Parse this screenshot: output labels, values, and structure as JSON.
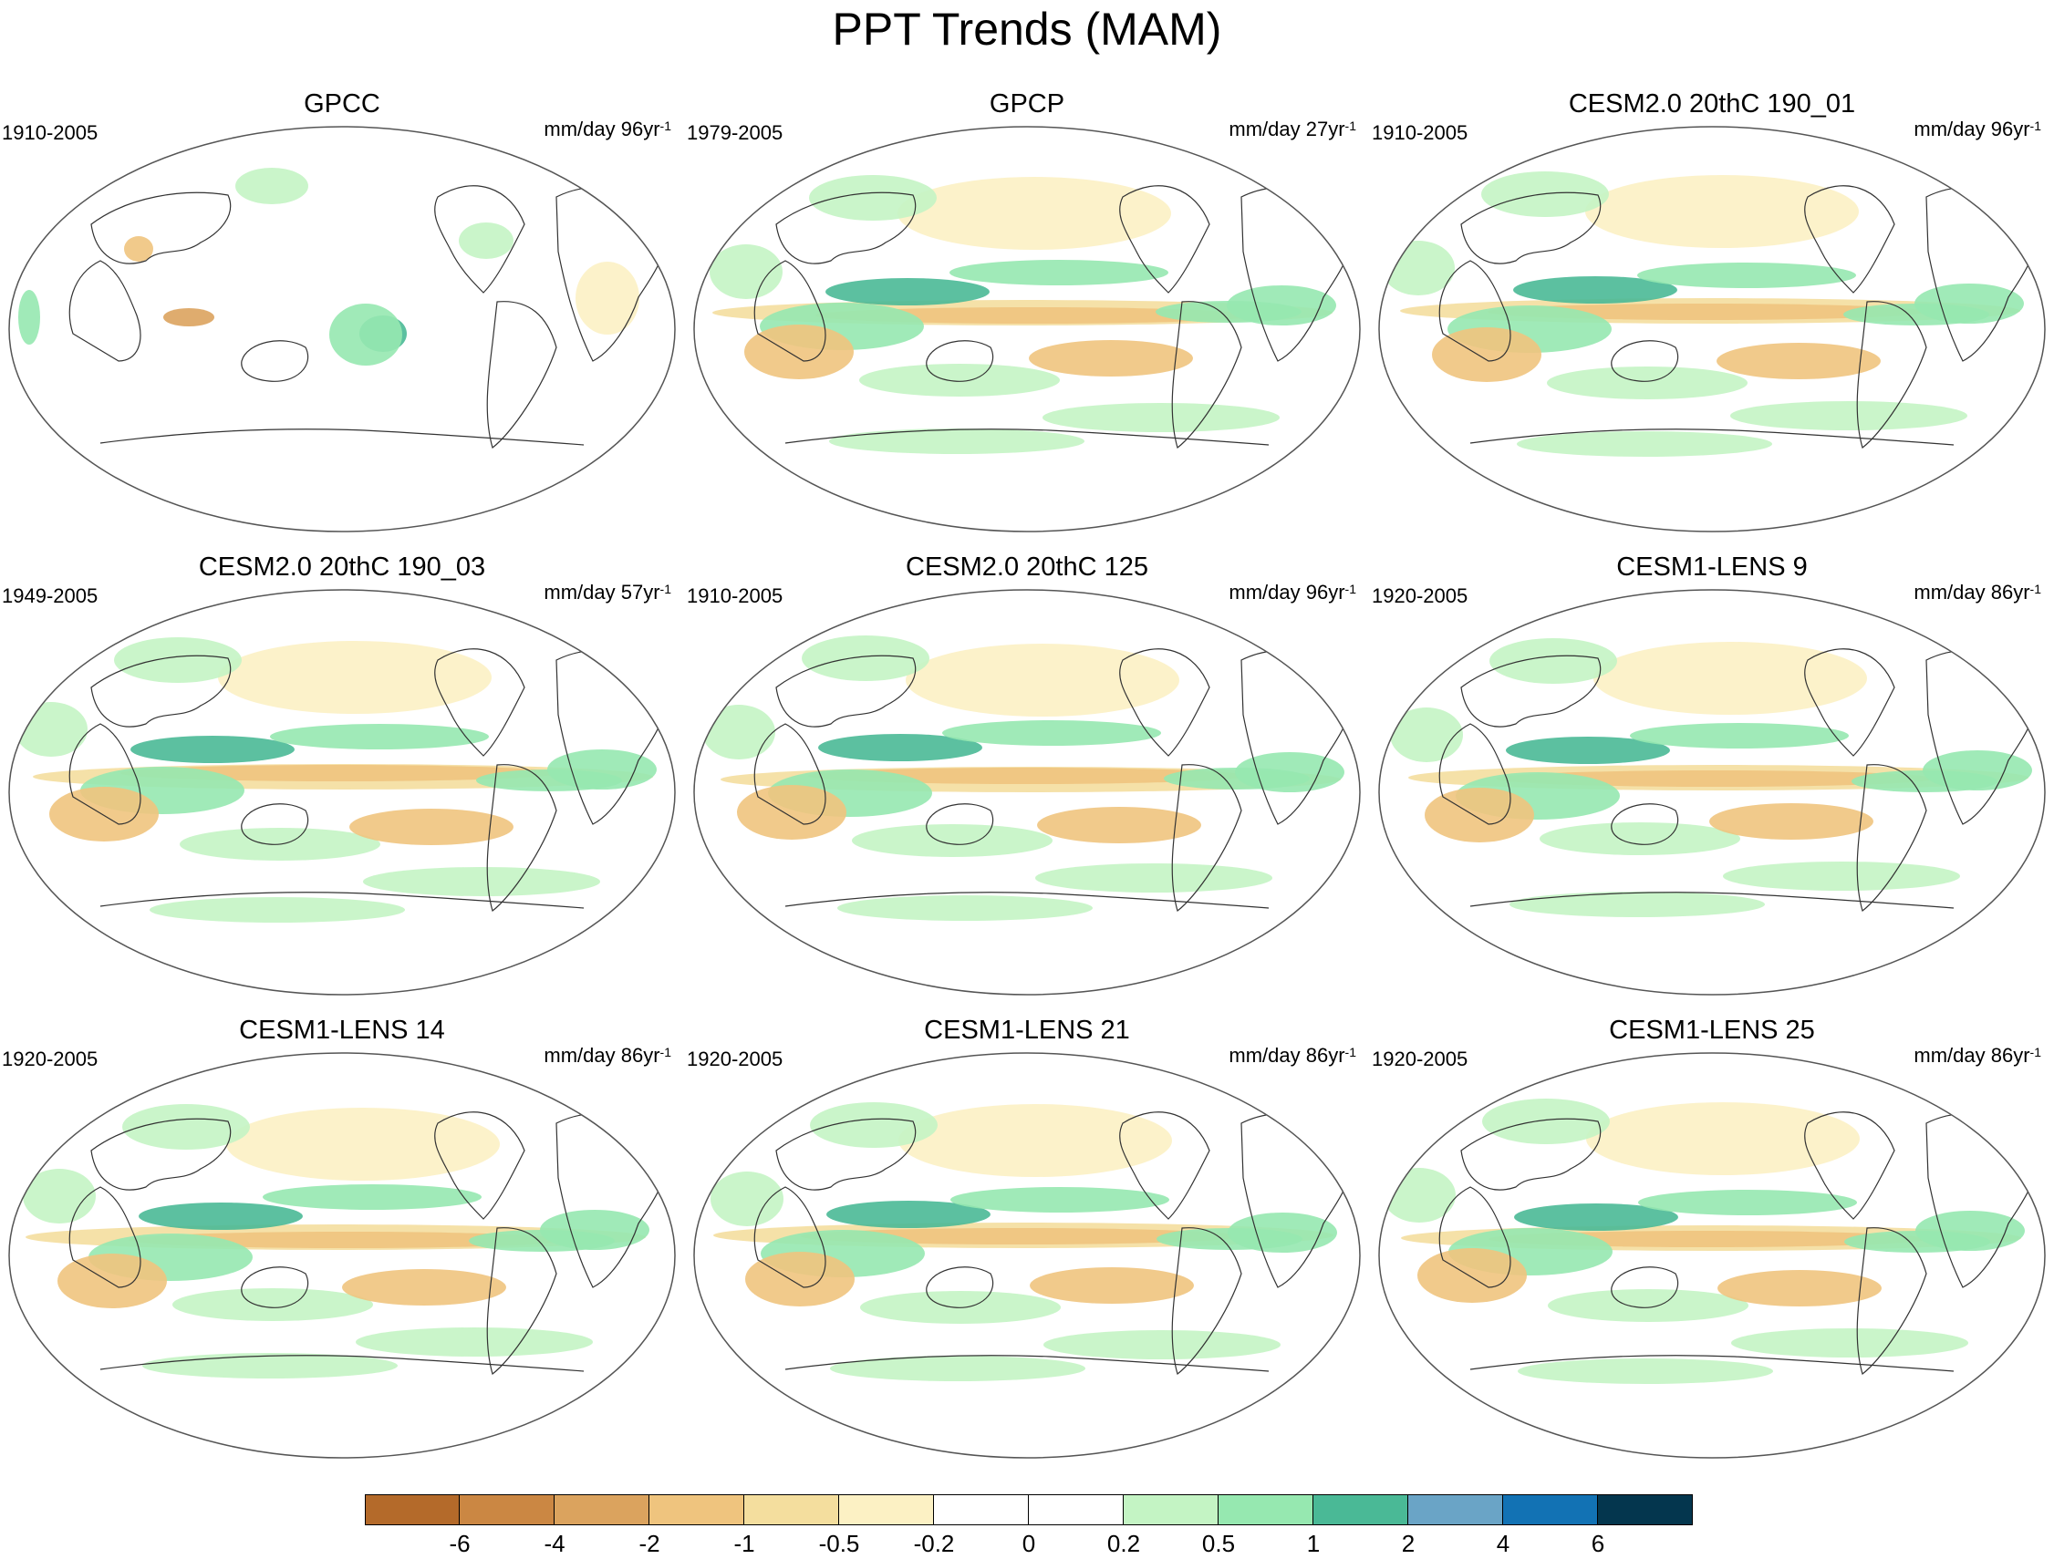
{
  "title": "PPT Trends (MAM)",
  "chart_data": {
    "type": "heatmap",
    "title": "PPT Trends (MAM)",
    "projection": "Robinson-like global map, Pacific-centered",
    "panels": [
      {
        "title": "GPCC",
        "period": "1910-2005",
        "units": "mm/day 96yr",
        "units_exp": "-1"
      },
      {
        "title": "GPCP",
        "period": "1979-2005",
        "units": "mm/day 27yr",
        "units_exp": "-1"
      },
      {
        "title": "CESM2.0 20thC 190_01",
        "period": "1910-2005",
        "units": "mm/day 96yr",
        "units_exp": "-1"
      },
      {
        "title": "CESM2.0 20thC 190_03",
        "period": "1949-2005",
        "units": "mm/day 57yr",
        "units_exp": "-1"
      },
      {
        "title": "CESM2.0 20thC 125",
        "period": "1910-2005",
        "units": "mm/day 96yr",
        "units_exp": "-1"
      },
      {
        "title": "CESM1-LENS 9",
        "period": "1920-2005",
        "units": "mm/day 86yr",
        "units_exp": "-1"
      },
      {
        "title": "CESM1-LENS 14",
        "period": "1920-2005",
        "units": "mm/day 86yr",
        "units_exp": "-1"
      },
      {
        "title": "CESM1-LENS 21",
        "period": "1920-2005",
        "units": "mm/day 86yr",
        "units_exp": "-1"
      },
      {
        "title": "CESM1-LENS 25",
        "period": "1920-2005",
        "units": "mm/day 86yr",
        "units_exp": "-1"
      }
    ],
    "colorbar": {
      "levels": [
        "-6",
        "-4",
        "-2",
        "-1",
        "-0.5",
        "-0.2",
        "0",
        "0.2",
        "0.5",
        "1",
        "2",
        "4",
        "6"
      ],
      "colors": [
        "#b46a2a",
        "#cb8743",
        "#dba35e",
        "#efc47e",
        "#f4de9e",
        "#fcf1c4",
        "#ffffff",
        "#ffffff",
        "#c4f4c4",
        "#96e8b0",
        "#4ab996",
        "#6aa4c6",
        "#1272b4",
        "#04364e"
      ]
    }
  }
}
